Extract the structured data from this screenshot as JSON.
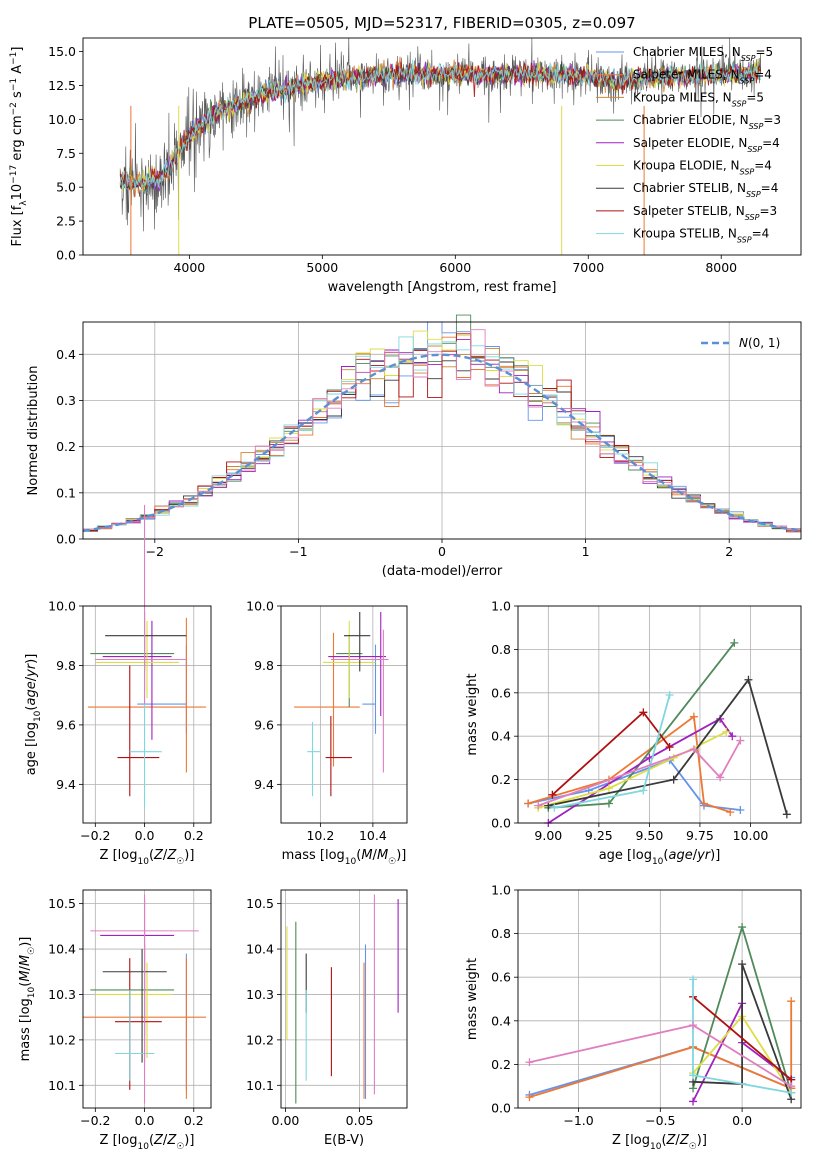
{
  "figure_title": "PLATE=0505, MJD=52317, FIBERID=0305, z=0.097",
  "chart_data": [
    {
      "id": "spectrum",
      "type": "line",
      "xlabel": "wavelength [Angstrom, rest frame]",
      "ylabel": "Flux [f_λ 10^-17 erg cm^-2 s^-1 A^-1]",
      "xlim": [
        3200,
        8600
      ],
      "ylim": [
        0,
        16
      ],
      "xticks": [
        4000,
        5000,
        6000,
        7000,
        8000
      ],
      "yticks": [
        0.0,
        2.5,
        5.0,
        7.5,
        10.0,
        12.5,
        15.0
      ],
      "grid": false,
      "legend_position": "right",
      "observed": {
        "color": "#555555",
        "continuum_x": [
          3480,
          3600,
          3800,
          4000,
          4200,
          4400,
          4600,
          4800,
          5000,
          5200,
          5400,
          5600,
          5800,
          6000,
          6200,
          6400,
          6600,
          6800,
          7000,
          7200,
          7400,
          7600,
          7800,
          8000,
          8200,
          8300
        ],
        "continuum_y": [
          5.5,
          5.2,
          5.8,
          8.8,
          10.5,
          11.2,
          12.0,
          12.4,
          12.8,
          13.0,
          13.2,
          13.3,
          13.3,
          13.4,
          13.3,
          13.3,
          13.3,
          13.3,
          13.2,
          12.8,
          13.0,
          13.1,
          13.2,
          13.3,
          13.4,
          13.6
        ]
      },
      "series": [
        {
          "name": "Chabrier MILES, N_SSP=5",
          "color": "#6495ed"
        },
        {
          "name": "Salpeter MILES, N_SSP=4",
          "color": "#ee7733"
        },
        {
          "name": "Kroupa MILES, N_SSP=5",
          "color": "#cc8833"
        },
        {
          "name": "Chabrier ELODIE, N_SSP=3",
          "color": "#4f8a5a"
        },
        {
          "name": "Salpeter ELODIE, N_SSP=4",
          "color": "#a020c0"
        },
        {
          "name": "Kroupa ELODIE, N_SSP=4",
          "color": "#dddd44"
        },
        {
          "name": "Chabrier STELIB, N_SSP=4",
          "color": "#3a3a3a"
        },
        {
          "name": "Salpeter STELIB, N_SSP=3",
          "color": "#b01010"
        },
        {
          "name": "Kroupa STELIB, N_SSP=4",
          "color": "#7fd7e0"
        }
      ],
      "legend_labels": [
        [
          "Chabrier MILES, N",
          "SSP",
          "=5"
        ],
        [
          "Salpeter MILES, N",
          "SSP",
          "=4"
        ],
        [
          "Kroupa MILES, N",
          "SSP",
          "=5"
        ],
        [
          "Chabrier ELODIE, N",
          "SSP",
          "=3"
        ],
        [
          "Salpeter ELODIE, N",
          "SSP",
          "=4"
        ],
        [
          "Kroupa ELODIE, N",
          "SSP",
          "=4"
        ],
        [
          "Chabrier STELIB, N",
          "SSP",
          "=4"
        ],
        [
          "Salpeter STELIB, N",
          "SSP",
          "=3"
        ],
        [
          "Kroupa STELIB, N",
          "SSP",
          "=4"
        ]
      ]
    },
    {
      "id": "residuals",
      "type": "histogram",
      "xlabel": "(data-model)/error",
      "ylabel": "Normed distribution",
      "xlim": [
        -2.5,
        2.5
      ],
      "ylim": [
        0,
        0.47
      ],
      "xticks": [
        -2,
        -1,
        0,
        1,
        2
      ],
      "yticks": [
        0.0,
        0.1,
        0.2,
        0.3,
        0.4
      ],
      "grid": true,
      "legend_position": "top-right",
      "reference_curve": {
        "name": "N(0,1)",
        "mean": 0,
        "sigma": 1,
        "style": "dashed",
        "color": "#5b8fd6"
      }
    },
    {
      "id": "age_vs_Z",
      "type": "errorbar",
      "xlabel": "Z [log10(Z/Z☉)]",
      "ylabel": "age [log10(age/yr)]",
      "xlim": [
        -0.25,
        0.27
      ],
      "ylim": [
        9.27,
        10.0
      ],
      "xticks": [
        -0.2,
        0.0,
        0.2
      ],
      "yticks": [
        9.4,
        9.6,
        9.8,
        10.0
      ],
      "grid": true,
      "points": [
        {
          "x": 0.17,
          "y": 9.67,
          "xerr": [
            0.2,
            0.0
          ],
          "yerr": [
            0.1,
            0.2
          ],
          "color": "#6495ed"
        },
        {
          "x": 0.17,
          "y": 9.66,
          "xerr": [
            0.4,
            0.08
          ],
          "yerr": [
            0.22,
            0.3
          ],
          "color": "#ee7733"
        },
        {
          "x": 0.0,
          "y": 9.84,
          "xerr": [
            0.22,
            0.12
          ],
          "yerr": [
            0.12,
            0.06
          ],
          "color": "#4f8a5a"
        },
        {
          "x": 0.03,
          "y": 9.83,
          "xerr": [
            0.2,
            0.08
          ],
          "yerr": [
            0.28,
            0.12
          ],
          "color": "#a020c0"
        },
        {
          "x": 0.01,
          "y": 9.81,
          "xerr": [
            0.21,
            0.13
          ],
          "yerr": [
            0.12,
            0.14
          ],
          "color": "#dddd44"
        },
        {
          "x": 0.0,
          "y": 9.9,
          "xerr": [
            0.16,
            0.17
          ],
          "yerr": [
            0.12,
            0.08
          ],
          "color": "#3a3a3a"
        },
        {
          "x": -0.06,
          "y": 9.49,
          "xerr": [
            0.05,
            0.12
          ],
          "yerr": [
            0.13,
            0.31
          ],
          "color": "#b01010"
        },
        {
          "x": 0.0,
          "y": 9.51,
          "xerr": [
            0.06,
            0.07
          ],
          "yerr": [
            0.19,
            0.22
          ],
          "color": "#7fd7e0"
        },
        {
          "x": 0.0,
          "y": 9.82,
          "xerr": [
            0.2,
            0.17
          ],
          "yerr": [
            0.15,
            0.52
          ],
          "color": "#e07fbf"
        }
      ]
    },
    {
      "id": "age_vs_mass",
      "type": "errorbar",
      "xlabel": "mass [log10(M/M☉)]",
      "ylabel": "",
      "xlim": [
        10.05,
        10.53
      ],
      "ylim": [
        9.27,
        10.0
      ],
      "xticks": [
        10.2,
        10.4
      ],
      "yticks": [
        9.4,
        9.6,
        9.8,
        10.0
      ],
      "grid": true,
      "points": [
        {
          "x": 10.41,
          "y": 9.67,
          "xerr": [
            0.05,
            0.0
          ],
          "yerr": [
            0.1,
            0.2
          ],
          "color": "#6495ed"
        },
        {
          "x": 10.25,
          "y": 9.66,
          "xerr": [
            0.15,
            0.1
          ],
          "yerr": [
            0.2,
            0.25
          ],
          "color": "#ee7733"
        },
        {
          "x": 10.31,
          "y": 9.84,
          "xerr": [
            0.05,
            0.05
          ],
          "yerr": [
            0.18,
            0.06
          ],
          "color": "#4f8a5a"
        },
        {
          "x": 10.43,
          "y": 9.83,
          "xerr": [
            0.2,
            0.02
          ],
          "yerr": [
            0.2,
            0.15
          ],
          "color": "#a020c0"
        },
        {
          "x": 10.31,
          "y": 9.81,
          "xerr": [
            0.1,
            0.1
          ],
          "yerr": [
            0.12,
            0.14
          ],
          "color": "#dddd44"
        },
        {
          "x": 10.35,
          "y": 9.9,
          "xerr": [
            0.06,
            0.04
          ],
          "yerr": [
            0.12,
            0.08
          ],
          "color": "#3a3a3a"
        },
        {
          "x": 10.24,
          "y": 9.49,
          "xerr": [
            0.02,
            0.08
          ],
          "yerr": [
            0.13,
            0.14
          ],
          "color": "#b01010"
        },
        {
          "x": 10.17,
          "y": 9.51,
          "xerr": [
            0.02,
            0.03
          ],
          "yerr": [
            0.15,
            0.1
          ],
          "color": "#7fd7e0"
        },
        {
          "x": 10.44,
          "y": 9.82,
          "xerr": [
            0.2,
            0.02
          ],
          "yerr": [
            0.38,
            0.1
          ],
          "color": "#e07fbf"
        }
      ]
    },
    {
      "id": "mass_weight_vs_age",
      "type": "line",
      "xlabel": "age [log10(age/yr)]",
      "ylabel": "mass weight",
      "xlim": [
        8.85,
        10.25
      ],
      "ylim": [
        0.0,
        1.0
      ],
      "xticks": [
        9.0,
        9.25,
        9.5,
        9.75,
        10.0
      ],
      "yticks": [
        0.0,
        0.2,
        0.4,
        0.6,
        0.8,
        1.0
      ],
      "grid": true,
      "series": [
        {
          "color": "#6495ed",
          "x": [
            8.9,
            9.2,
            9.6,
            9.77,
            9.95
          ],
          "y": [
            0.09,
            0.15,
            0.29,
            0.08,
            0.06
          ]
        },
        {
          "color": "#ee7733",
          "x": [
            8.9,
            9.3,
            9.72,
            9.77,
            9.9
          ],
          "y": [
            0.09,
            0.2,
            0.49,
            0.09,
            0.05
          ]
        },
        {
          "color": "#4f8a5a",
          "x": [
            9.0,
            9.3,
            9.92
          ],
          "y": [
            0.07,
            0.09,
            0.83
          ]
        },
        {
          "color": "#a020c0",
          "x": [
            9.0,
            9.5,
            9.85,
            9.91
          ],
          "y": [
            0.0,
            0.3,
            0.48,
            0.4
          ]
        },
        {
          "color": "#dddd44",
          "x": [
            8.95,
            9.3,
            9.62,
            9.88
          ],
          "y": [
            0.07,
            0.16,
            0.3,
            0.42
          ]
        },
        {
          "color": "#3a3a3a",
          "x": [
            9.0,
            9.62,
            9.99,
            10.18
          ],
          "y": [
            0.08,
            0.2,
            0.66,
            0.04
          ]
        },
        {
          "color": "#b01010",
          "x": [
            9.02,
            9.47,
            9.6
          ],
          "y": [
            0.13,
            0.51,
            0.35
          ]
        },
        {
          "color": "#7fd7e0",
          "x": [
            9.03,
            9.47,
            9.6
          ],
          "y": [
            0.07,
            0.15,
            0.59
          ]
        },
        {
          "color": "#e07fbf",
          "x": [
            8.95,
            9.72,
            9.85,
            9.95
          ],
          "y": [
            0.08,
            0.34,
            0.21,
            0.38
          ]
        }
      ]
    },
    {
      "id": "mass_vs_Z",
      "type": "errorbar",
      "xlabel": "Z [log10(Z/Z☉)]",
      "ylabel": "mass [log10(M/M☉)]",
      "xlim": [
        -0.25,
        0.27
      ],
      "ylim": [
        10.05,
        10.53
      ],
      "xticks": [
        -0.2,
        0.0,
        0.2
      ],
      "yticks": [
        10.1,
        10.2,
        10.3,
        10.4,
        10.5
      ],
      "grid": true,
      "points": [
        {
          "x": 0.17,
          "y": 10.29,
          "xerr": [
            0.0,
            0.0
          ],
          "yerr": [
            0.2,
            0.1
          ],
          "color": "#6495ed"
        },
        {
          "x": 0.17,
          "y": 10.25,
          "xerr": [
            0.42,
            0.08
          ],
          "yerr": [
            0.18,
            0.13
          ],
          "color": "#ee7733"
        },
        {
          "x": 0.0,
          "y": 10.31,
          "xerr": [
            0.22,
            0.12
          ],
          "yerr": [
            0.1,
            0.1
          ],
          "color": "#4f8a5a"
        },
        {
          "x": 0.0,
          "y": 10.43,
          "xerr": [
            0.18,
            0.12
          ],
          "yerr": [
            0.28,
            0.08
          ],
          "color": "#a020c0"
        },
        {
          "x": 0.01,
          "y": 10.3,
          "xerr": [
            0.21,
            0.1
          ],
          "yerr": [
            0.14,
            0.07
          ],
          "color": "#dddd44"
        },
        {
          "x": -0.01,
          "y": 10.35,
          "xerr": [
            0.16,
            0.1
          ],
          "yerr": [
            0.2,
            0.05
          ],
          "color": "#3a3a3a"
        },
        {
          "x": -0.06,
          "y": 10.24,
          "xerr": [
            0.06,
            0.13
          ],
          "yerr": [
            0.15,
            0.14
          ],
          "color": "#b01010"
        },
        {
          "x": -0.06,
          "y": 10.17,
          "xerr": [
            0.06,
            0.1
          ],
          "yerr": [
            0.06,
            0.14
          ],
          "color": "#7fd7e0"
        },
        {
          "x": 0.0,
          "y": 10.44,
          "xerr": [
            0.22,
            0.22
          ],
          "yerr": [
            0.38,
            0.08
          ],
          "color": "#e07fbf"
        }
      ]
    },
    {
      "id": "mass_vs_ebv",
      "type": "errorbar",
      "xlabel": "E(B-V)",
      "ylabel": "",
      "xlim": [
        -0.003,
        0.082
      ],
      "ylim": [
        10.05,
        10.53
      ],
      "xticks": [
        0.0,
        0.05
      ],
      "yticks": [
        10.1,
        10.2,
        10.3,
        10.4,
        10.5
      ],
      "grid": true,
      "points": [
        {
          "x": 0.054,
          "y": 10.29,
          "yerr": [
            0.22,
            0.12
          ],
          "color": "#6495ed"
        },
        {
          "x": 0.053,
          "y": 10.25,
          "yerr": [
            0.18,
            0.12
          ],
          "color": "#ee7733"
        },
        {
          "x": 0.007,
          "y": 10.31,
          "yerr": [
            0.25,
            0.15
          ],
          "color": "#4f8a5a"
        },
        {
          "x": 0.076,
          "y": 10.43,
          "yerr": [
            0.17,
            0.08
          ],
          "color": "#a020c0"
        },
        {
          "x": 0.001,
          "y": 10.3,
          "yerr": [
            0.1,
            0.15
          ],
          "color": "#dddd44"
        },
        {
          "x": 0.014,
          "y": 10.35,
          "yerr": [
            0.09,
            0.04
          ],
          "color": "#3a3a3a"
        },
        {
          "x": 0.031,
          "y": 10.24,
          "yerr": [
            0.12,
            0.12
          ],
          "color": "#b01010"
        },
        {
          "x": 0.014,
          "y": 10.17,
          "yerr": [
            0.06,
            0.14
          ],
          "color": "#7fd7e0"
        },
        {
          "x": 0.06,
          "y": 10.44,
          "yerr": [
            0.36,
            0.08
          ],
          "color": "#e07fbf"
        }
      ]
    },
    {
      "id": "mass_weight_vs_Z",
      "type": "line",
      "xlabel": "Z [log10(Z/Z☉)]",
      "ylabel": "mass weight",
      "xlim": [
        -1.37,
        0.36
      ],
      "ylim": [
        0.0,
        1.0
      ],
      "xticks": [
        -1.0,
        -0.5,
        0.0
      ],
      "yticks": [
        0.0,
        0.2,
        0.4,
        0.6,
        0.8,
        1.0
      ],
      "grid": true,
      "series": [
        {
          "color": "#6495ed",
          "x": [
            -1.3,
            -0.3,
            0.3,
            0.3
          ],
          "y": [
            0.06,
            0.28,
            0.09,
            0.14
          ]
        },
        {
          "color": "#ee7733",
          "x": [
            -1.3,
            -0.3,
            0.3,
            0.3,
            0.3
          ],
          "y": [
            0.05,
            0.28,
            0.09,
            0.49,
            0.09
          ]
        },
        {
          "color": "#4f8a5a",
          "x": [
            -0.3,
            0.0,
            0.3
          ],
          "y": [
            0.09,
            0.83,
            0.07
          ]
        },
        {
          "color": "#a020c0",
          "x": [
            -0.3,
            0.0,
            0.0,
            0.3
          ],
          "y": [
            0.03,
            0.48,
            0.3,
            0.13
          ]
        },
        {
          "color": "#dddd44",
          "x": [
            -0.3,
            0.0,
            0.3
          ],
          "y": [
            0.16,
            0.42,
            0.07
          ]
        },
        {
          "color": "#3a3a3a",
          "x": [
            -0.3,
            0.0,
            0.0,
            0.3
          ],
          "y": [
            0.12,
            0.11,
            0.66,
            0.04
          ]
        },
        {
          "color": "#b01010",
          "x": [
            -0.3,
            0.3
          ],
          "y": [
            0.51,
            0.13
          ]
        },
        {
          "color": "#7fd7e0",
          "x": [
            -0.3,
            -0.3,
            0.3
          ],
          "y": [
            0.59,
            0.15,
            0.07
          ]
        },
        {
          "color": "#e07fbf",
          "x": [
            -1.3,
            -0.3,
            0.3
          ],
          "y": [
            0.21,
            0.38,
            0.1
          ]
        }
      ]
    }
  ],
  "palette": [
    "#6495ed",
    "#ee7733",
    "#cc8833",
    "#4f8a5a",
    "#a020c0",
    "#dddd44",
    "#3a3a3a",
    "#b01010",
    "#7fd7e0",
    "#e07fbf"
  ]
}
